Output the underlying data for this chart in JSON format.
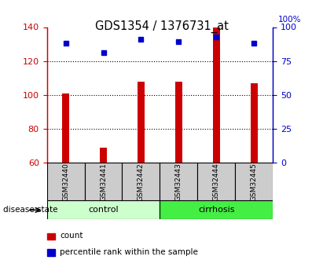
{
  "title": "GDS1354 / 1376731_at",
  "samples": [
    "GSM32440",
    "GSM32441",
    "GSM32442",
    "GSM32443",
    "GSM32444",
    "GSM32445"
  ],
  "count_values": [
    101,
    69,
    108,
    108,
    140,
    107
  ],
  "percentile_values": [
    88,
    81,
    91,
    89,
    93,
    88
  ],
  "ymin": 60,
  "ymax": 140,
  "yticks_left": [
    60,
    80,
    100,
    120,
    140
  ],
  "yticks_right": [
    0,
    25,
    50,
    75,
    100
  ],
  "bar_color": "#cc0000",
  "dot_color": "#0000cc",
  "label_color_left": "#cc0000",
  "label_color_right": "#0000cc",
  "bar_width": 0.18,
  "dot_size": 5,
  "legend_items": [
    "count",
    "percentile rank within the sample"
  ],
  "control_color": "#ccffcc",
  "cirrhosis_color": "#44ee44",
  "sample_box_color": "#cccccc",
  "gridline_ticks": [
    80,
    100,
    120
  ]
}
